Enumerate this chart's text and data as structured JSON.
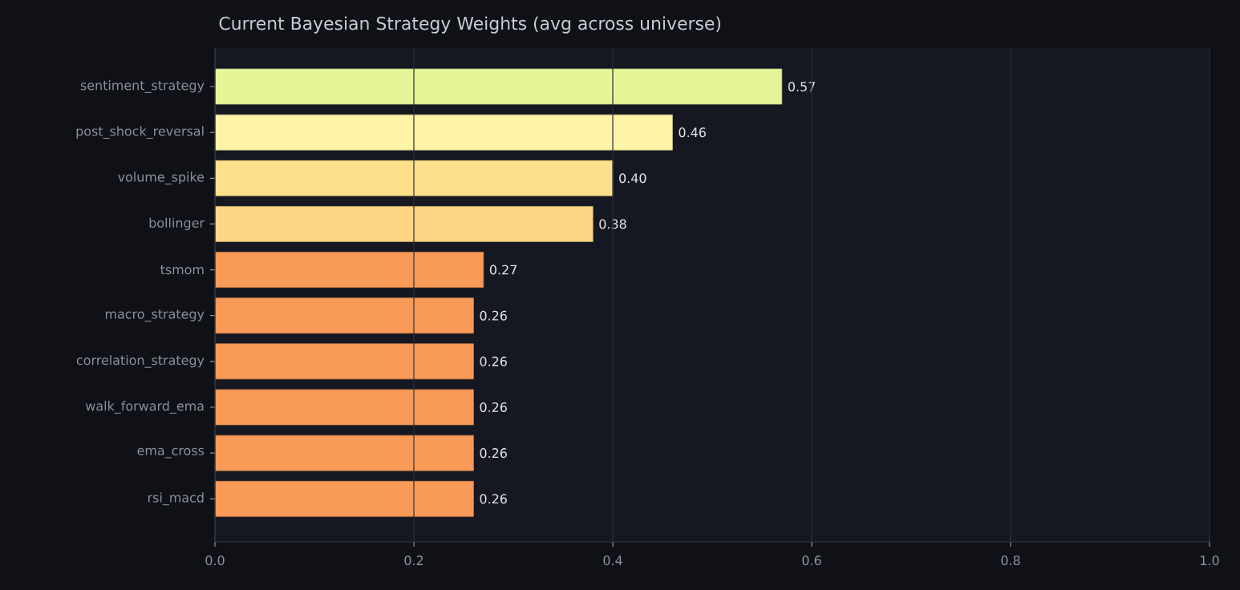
{
  "chart_data": {
    "type": "bar",
    "orientation": "horizontal",
    "title": "Current Bayesian Strategy Weights (avg across universe)",
    "categories": [
      "sentiment_strategy",
      "post_shock_reversal",
      "volume_spike",
      "bollinger",
      "tsmom",
      "macro_strategy",
      "correlation_strategy",
      "walk_forward_ema",
      "ema_cross",
      "rsi_macd"
    ],
    "values": [
      0.57,
      0.46,
      0.4,
      0.38,
      0.27,
      0.26,
      0.26,
      0.26,
      0.26,
      0.26
    ],
    "value_labels": [
      "0.57",
      "0.46",
      "0.40",
      "0.38",
      "0.27",
      "0.26",
      "0.26",
      "0.26",
      "0.26",
      "0.26"
    ],
    "colors": [
      "#e6f598",
      "#fff3a8",
      "#fee08b",
      "#fed582",
      "#f99a58",
      "#f99a58",
      "#f99a58",
      "#f99a58",
      "#f99a58",
      "#f99a58"
    ],
    "xlim": [
      0,
      1
    ],
    "xticks": [
      {
        "value": 0,
        "label": "0.0"
      },
      {
        "value": 0.2,
        "label": "0.2"
      },
      {
        "value": 0.4,
        "label": "0.4"
      },
      {
        "value": 0.6,
        "label": "0.6"
      },
      {
        "value": 0.8,
        "label": "0.8"
      },
      {
        "value": 1,
        "label": "1.0"
      }
    ],
    "grid": "x"
  }
}
